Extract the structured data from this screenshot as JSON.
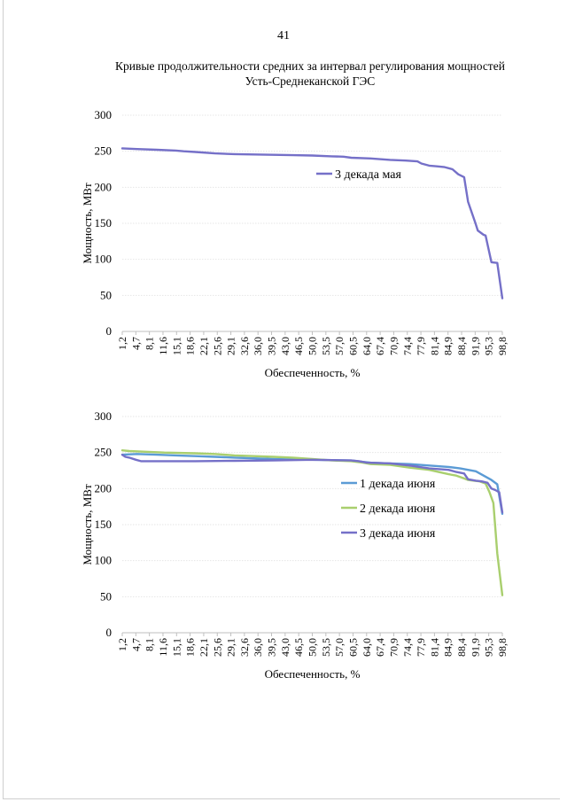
{
  "page": {
    "number": "41",
    "title_line1": "Кривые продолжительности средних за интервал регулирования мощностей",
    "title_line2": "Усть-Среднеканской ГЭС"
  },
  "chart_data": [
    {
      "type": "line",
      "title": "",
      "xlabel": "Обеспеченность, %",
      "ylabel": "Мощность, МВт",
      "ylim": [
        0,
        300
      ],
      "yticks": [
        0,
        50,
        100,
        150,
        200,
        250,
        300
      ],
      "xlim": [
        1.2,
        98.8
      ],
      "xtick_labels": [
        "1,2",
        "4,7",
        "8,1",
        "11,6",
        "15,1",
        "18,6",
        "22,1",
        "25,6",
        "29,1",
        "32,6",
        "36,0",
        "39,5",
        "43,0",
        "46,5",
        "50,0",
        "53,5",
        "57,0",
        "60,5",
        "64,0",
        "67,4",
        "70,9",
        "74,4",
        "77,9",
        "81,4",
        "84,9",
        "88,4",
        "91,9",
        "95,3",
        "98,8"
      ],
      "grid": true,
      "legend_position": "center-right",
      "series": [
        {
          "name": "3 декада мая",
          "color": "#7570c8",
          "x": [
            1.2,
            5,
            10,
            15,
            17,
            20,
            25,
            30,
            35,
            40,
            45,
            50,
            55,
            58,
            60,
            65,
            70,
            74,
            77,
            78,
            80,
            82,
            84,
            86,
            87.5,
            89,
            90,
            91.9,
            92.5,
            94,
            94.5,
            96,
            97.5,
            98.8
          ],
          "y": [
            254,
            253,
            252,
            251,
            250,
            249,
            247,
            246,
            245.5,
            245,
            244.5,
            244,
            243,
            242.5,
            241,
            240,
            238,
            237,
            236,
            233,
            230,
            229,
            228,
            225,
            218,
            214,
            180,
            150,
            140,
            134,
            133,
            96,
            95,
            46
          ]
        }
      ]
    },
    {
      "type": "line",
      "title": "",
      "xlabel": "Обеспеченность, %",
      "ylabel": "Мощность, МВт",
      "ylim": [
        0,
        300
      ],
      "yticks": [
        0,
        50,
        100,
        150,
        200,
        250,
        300
      ],
      "xlim": [
        1.2,
        98.8
      ],
      "xtick_labels": [
        "1,2",
        "4,7",
        "8,1",
        "11,6",
        "15,1",
        "18,6",
        "22,1",
        "25,6",
        "29,1",
        "32,6",
        "36,0",
        "39,5",
        "43,0",
        "46,5",
        "50,0",
        "53,5",
        "57,0",
        "60,5",
        "64,0",
        "67,4",
        "70,9",
        "74,4",
        "77,9",
        "81,4",
        "84,9",
        "88,4",
        "91,9",
        "95,3",
        "98,8"
      ],
      "grid": true,
      "legend_position": "center-right",
      "series": [
        {
          "name": "1 декада июня",
          "color": "#5b9bd5",
          "x": [
            1.2,
            5,
            10,
            15,
            20,
            25,
            30,
            35,
            40,
            45,
            50,
            55,
            60,
            63,
            65,
            70,
            75,
            80,
            85,
            88,
            90,
            92,
            94,
            96,
            97.5,
            98.8
          ],
          "y": [
            247,
            248,
            247,
            246,
            245,
            244,
            243,
            242,
            241,
            240.5,
            240,
            239.5,
            239,
            237,
            236,
            235,
            234,
            232,
            230,
            228,
            226,
            224,
            218,
            212,
            206,
            165
          ]
        },
        {
          "name": "2 декада июня",
          "color": "#a9cf6e",
          "x": [
            1.2,
            3,
            8,
            12,
            20,
            25,
            30,
            35,
            40,
            45,
            50,
            55,
            60,
            63,
            65,
            70,
            75,
            80,
            85,
            87,
            89,
            90,
            91.5,
            93,
            94.5,
            95.5,
            96.5,
            97.5,
            98.8
          ],
          "y": [
            253,
            252,
            251,
            250,
            249,
            248,
            246,
            245,
            244,
            243,
            241,
            239,
            238,
            236,
            234,
            233,
            229,
            226,
            220,
            218,
            214,
            212,
            211,
            210,
            207,
            195,
            180,
            110,
            52
          ]
        },
        {
          "name": "3 декада июня",
          "color": "#7570c8",
          "x": [
            1.2,
            2,
            3,
            4.7,
            6,
            10,
            20,
            30,
            40,
            50,
            55,
            60,
            62,
            64,
            70,
            75,
            80,
            85,
            87,
            89,
            90,
            92,
            93.5,
            95,
            96,
            97,
            98,
            98.8
          ],
          "y": [
            247,
            244,
            243,
            240,
            238,
            238,
            238,
            238.5,
            239,
            240,
            239.5,
            239,
            238,
            236,
            235,
            232,
            228,
            226,
            223,
            221,
            213,
            211,
            210,
            208,
            200,
            198,
            195,
            167
          ]
        }
      ]
    }
  ]
}
